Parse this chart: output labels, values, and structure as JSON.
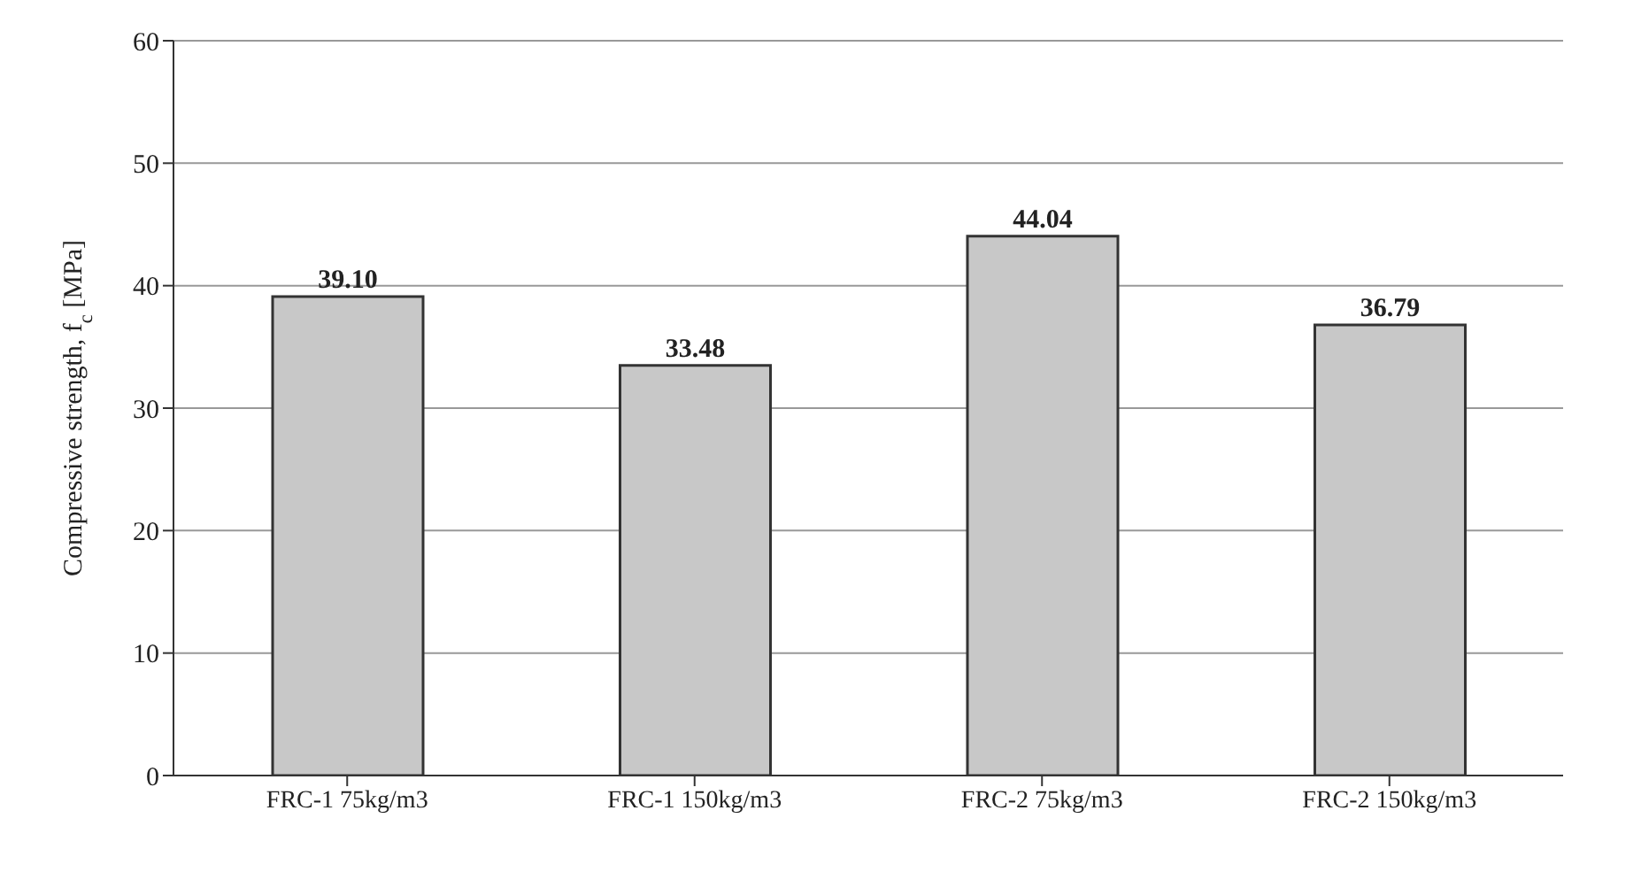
{
  "chart_data": {
    "type": "bar",
    "ylabel": "Compressive strength, f$_{c}$ [MPa]",
    "categories": [
      "FRC-1   75kg/m3",
      "FRC-1   150kg/m3",
      "FRC-2   75kg/m3",
      "FRC-2   150kg/m3"
    ],
    "values": [
      39.1,
      33.48,
      44.04,
      36.79
    ],
    "value_labels": [
      "39.10",
      "33.48",
      "44.04",
      "36.79"
    ],
    "color": "#c8c8c8",
    "ylim": [
      0,
      60
    ],
    "yticks": [
      0,
      10,
      20,
      30,
      40,
      50,
      60
    ],
    "grid": "y"
  }
}
